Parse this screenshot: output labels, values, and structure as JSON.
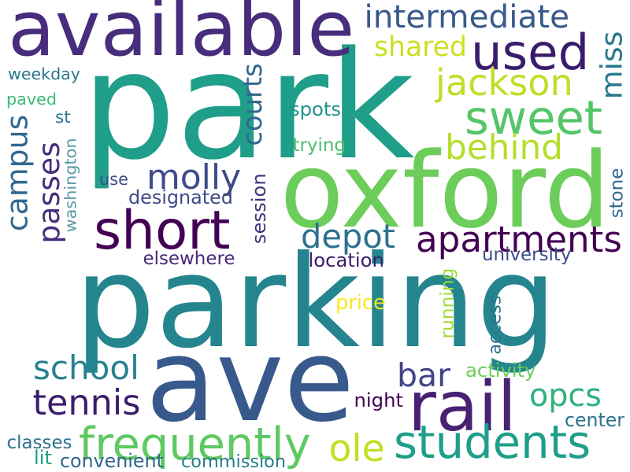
{
  "words": [
    {
      "text": "parking",
      "color": "#25858e",
      "vertical": false
    },
    {
      "text": "park",
      "color": "#1f9e89",
      "vertical": false
    },
    {
      "text": "ave",
      "color": "#38598c",
      "vertical": false
    },
    {
      "text": "oxford",
      "color": "#6ccd5a",
      "vertical": false
    },
    {
      "text": "available",
      "color": "#472d7b",
      "vertical": false
    },
    {
      "text": "short",
      "color": "#440154",
      "vertical": false
    },
    {
      "text": "rail",
      "color": "#482173",
      "vertical": false
    },
    {
      "text": "frequently",
      "color": "#5ec962",
      "vertical": false
    },
    {
      "text": "students",
      "color": "#1f9e89",
      "vertical": false
    },
    {
      "text": "apartments",
      "color": "#440154",
      "vertical": false
    },
    {
      "text": "used",
      "color": "#3b1c6c",
      "vertical": false
    },
    {
      "text": "sweet",
      "color": "#54c568",
      "vertical": false
    },
    {
      "text": "molly",
      "color": "#3e4a89",
      "vertical": false
    },
    {
      "text": "campus",
      "color": "#31688e",
      "vertical": true
    },
    {
      "text": "passes",
      "color": "#472d7b",
      "vertical": true
    },
    {
      "text": "courts",
      "color": "#31688e",
      "vertical": true
    },
    {
      "text": "jackson",
      "color": "#bddf26",
      "vertical": false
    },
    {
      "text": "behind",
      "color": "#b5de2b",
      "vertical": false
    },
    {
      "text": "miss",
      "color": "#2a788e",
      "vertical": true
    },
    {
      "text": "school",
      "color": "#26828e",
      "vertical": false
    },
    {
      "text": "tennis",
      "color": "#3b1c6c",
      "vertical": false
    },
    {
      "text": "depot",
      "color": "#2c728e",
      "vertical": false
    },
    {
      "text": "bar",
      "color": "#414487",
      "vertical": false
    },
    {
      "text": "ole",
      "color": "#c2df23",
      "vertical": false
    },
    {
      "text": "opcs",
      "color": "#2db27d",
      "vertical": false
    },
    {
      "text": "intermediate",
      "color": "#38598c",
      "vertical": false
    },
    {
      "text": "shared",
      "color": "#cae11f",
      "vertical": false
    },
    {
      "text": "weekday",
      "color": "#2a788e",
      "vertical": false
    },
    {
      "text": "paved",
      "color": "#3bbb75",
      "vertical": false
    },
    {
      "text": "st",
      "color": "#2a788e",
      "vertical": false
    },
    {
      "text": "washington",
      "color": "#5b9aa6",
      "vertical": true
    },
    {
      "text": "use",
      "color": "#3e4a89",
      "vertical": false
    },
    {
      "text": "designated",
      "color": "#3e4a89",
      "vertical": false
    },
    {
      "text": "session",
      "color": "#46327e",
      "vertical": true
    },
    {
      "text": "spots",
      "color": "#21918c",
      "vertical": false
    },
    {
      "text": "trying",
      "color": "#4ac16d",
      "vertical": false
    },
    {
      "text": "stone",
      "color": "#31688e",
      "vertical": true
    },
    {
      "text": "elsewhere",
      "color": "#482878",
      "vertical": false
    },
    {
      "text": "location",
      "color": "#3b1c6c",
      "vertical": false
    },
    {
      "text": "university",
      "color": "#3e4a89",
      "vertical": false
    },
    {
      "text": "running",
      "color": "#a0da39",
      "vertical": true
    },
    {
      "text": "price",
      "color": "#fde725",
      "vertical": false
    },
    {
      "text": "access",
      "color": "#2c728e",
      "vertical": true
    },
    {
      "text": "activity",
      "color": "#6ccd5a",
      "vertical": false
    },
    {
      "text": "night",
      "color": "#440154",
      "vertical": false
    },
    {
      "text": "center",
      "color": "#2c728e",
      "vertical": false
    },
    {
      "text": "classes",
      "color": "#2c728e",
      "vertical": false
    },
    {
      "text": "lit",
      "color": "#1f9e89",
      "vertical": false
    },
    {
      "text": "convenient",
      "color": "#31688e",
      "vertical": false
    },
    {
      "text": "commission",
      "color": "#287c8e",
      "vertical": false
    }
  ]
}
